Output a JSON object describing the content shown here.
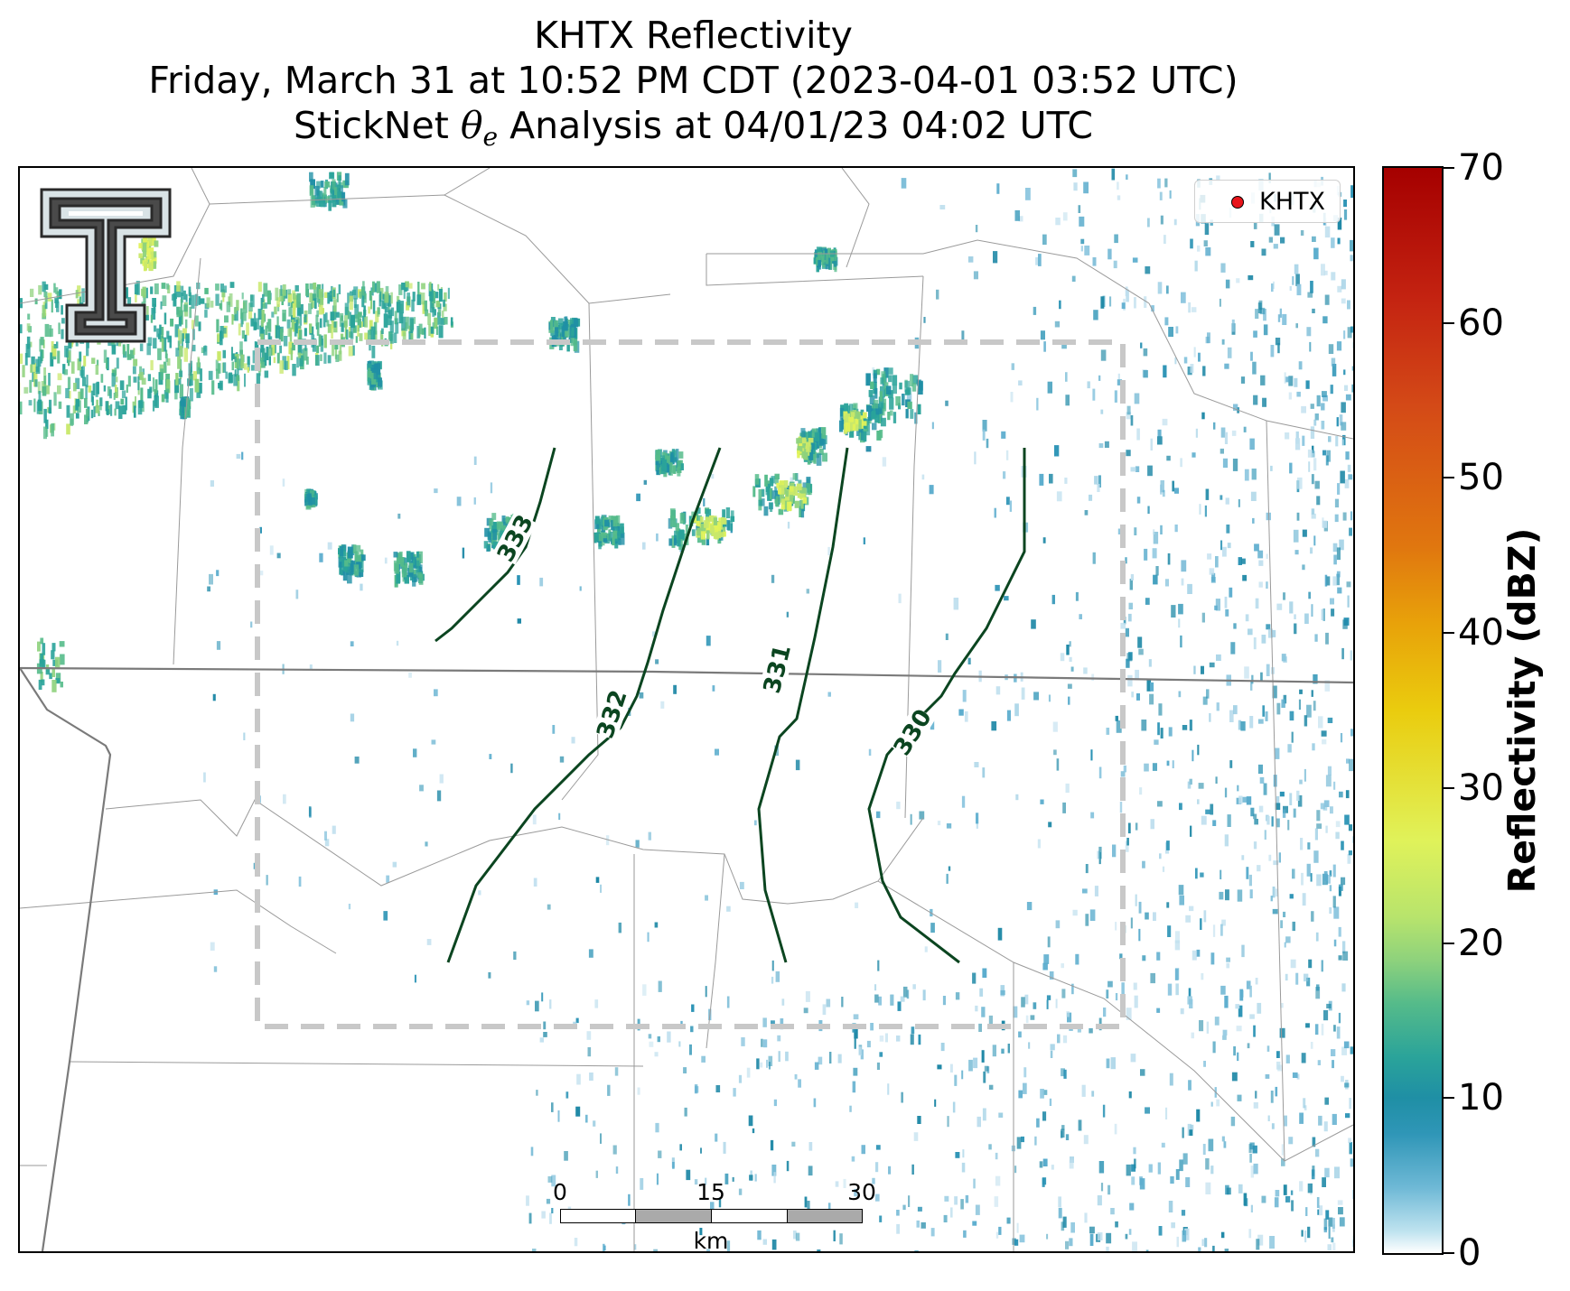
{
  "title": {
    "line1": "KHTX Reflectivity",
    "line2": "Friday, March 31 at 10:52 PM CDT (2023-04-01 03:52 UTC)",
    "line3_prefix": "StickNet ",
    "line3_theta": "θ",
    "line3_sub": "e",
    "line3_suffix": " Analysis at 04/01/23 04:02 UTC"
  },
  "legend": {
    "label": "KHTX",
    "marker_color": "#e8141b"
  },
  "colorbar": {
    "label": "Reflectivity (dBZ)",
    "ticks": [
      "0",
      "10",
      "20",
      "30",
      "40",
      "50",
      "60",
      "70"
    ],
    "range": [
      0,
      70
    ]
  },
  "scale_bar": {
    "ticks": [
      "0",
      "15",
      "30"
    ],
    "unit": "km"
  },
  "contours": {
    "color": "#0b4520",
    "levels": [
      {
        "label": "333"
      },
      {
        "label": "332"
      },
      {
        "label": "331"
      },
      {
        "label": "330"
      }
    ]
  },
  "colors": {
    "analysis_box": "#c8c8c8",
    "state_border": "#7a7a7a",
    "county_border": "#9a9a9a",
    "contour": "#0b4520"
  },
  "logo": {
    "name": "texas-tech-double-t-logo",
    "text": "TT"
  }
}
